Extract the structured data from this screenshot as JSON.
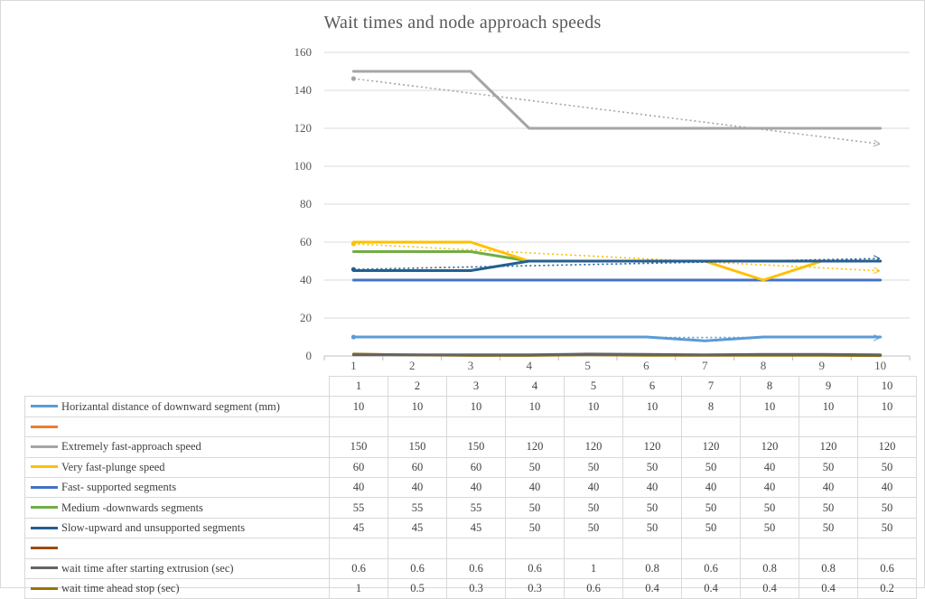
{
  "chart_data": {
    "type": "line",
    "title": "Wait times and node approach speeds",
    "categories": [
      "1",
      "2",
      "3",
      "4",
      "5",
      "6",
      "7",
      "8",
      "9",
      "10"
    ],
    "ylim": [
      0,
      160
    ],
    "yticks": [
      "0",
      "20",
      "40",
      "60",
      "80",
      "100",
      "120",
      "140",
      "160"
    ],
    "grid": true,
    "legend": "data-table",
    "series": [
      {
        "name": "Horizantal distance of downward segment (mm)",
        "color": "#5b9bd5",
        "values": [
          "10",
          "10",
          "10",
          "10",
          "10",
          "10",
          "8",
          "10",
          "10",
          "10"
        ],
        "trendline": true
      },
      {
        "name": "",
        "color": "#ed7d31",
        "values": [
          "",
          "",
          "",
          "",
          "",
          "",
          "",
          "",
          "",
          ""
        ],
        "trendline": false
      },
      {
        "name": "Extremely fast-approach speed",
        "color": "#a5a5a5",
        "values": [
          "150",
          "150",
          "150",
          "120",
          "120",
          "120",
          "120",
          "120",
          "120",
          "120"
        ],
        "trendline": true
      },
      {
        "name": "Very fast-plunge speed",
        "color": "#ffc000",
        "values": [
          "60",
          "60",
          "60",
          "50",
          "50",
          "50",
          "50",
          "40",
          "50",
          "50"
        ],
        "trendline": true
      },
      {
        "name": "Fast- supported segments",
        "color": "#4472c4",
        "values": [
          "40",
          "40",
          "40",
          "40",
          "40",
          "40",
          "40",
          "40",
          "40",
          "40"
        ],
        "trendline": false
      },
      {
        "name": "Medium -downwards segments",
        "color": "#70ad47",
        "values": [
          "55",
          "55",
          "55",
          "50",
          "50",
          "50",
          "50",
          "50",
          "50",
          "50"
        ],
        "trendline": false
      },
      {
        "name": "Slow-upward and unsupported segments",
        "color": "#255e91",
        "values": [
          "45",
          "45",
          "45",
          "50",
          "50",
          "50",
          "50",
          "50",
          "50",
          "50"
        ],
        "trendline": true
      },
      {
        "name": "",
        "color": "#9e480e",
        "values": [
          "",
          "",
          "",
          "",
          "",
          "",
          "",
          "",
          "",
          ""
        ],
        "trendline": false
      },
      {
        "name": "wait time after starting extrusion (sec)",
        "color": "#636363",
        "values": [
          "0.6",
          "0.6",
          "0.6",
          "0.6",
          "1",
          "0.8",
          "0.6",
          "0.8",
          "0.8",
          "0.6"
        ],
        "trendline": false
      },
      {
        "name": "wait time ahead stop (sec)",
        "color": "#997300",
        "values": [
          "1",
          "0.5",
          "0.3",
          "0.3",
          "0.6",
          "0.4",
          "0.4",
          "0.4",
          "0.4",
          "0.2"
        ],
        "trendline": false
      }
    ]
  }
}
